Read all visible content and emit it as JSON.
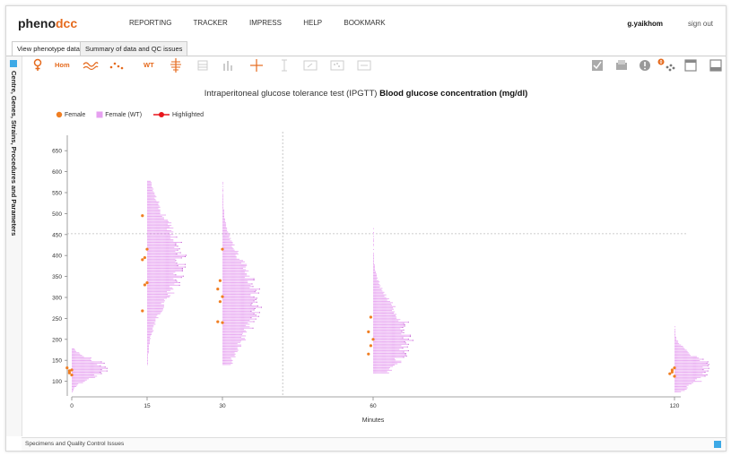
{
  "logo": {
    "pheno": "pheno",
    "dcc": "dcc"
  },
  "nav": [
    "REPORTING",
    "TRACKER",
    "IMPRESS",
    "HELP",
    "BOOKMARK"
  ],
  "user": "g.yaikhom",
  "signout": "sign out",
  "tabs": {
    "active": "View phenotype data",
    "inactive": "Summary of data and QC issues"
  },
  "sidebar_label": "Centre, Genes, Strains, Procedures and Parameters",
  "toolbar": {
    "hom": "Hom",
    "wt": "WT",
    "badge": "0"
  },
  "title": {
    "prefix": "Intraperitoneal glucose tolerance test (IPGTT)",
    "bold": "Blood glucose concentration (mg/dl)"
  },
  "legend": {
    "female": "Female",
    "female_wt": "Female (WT)",
    "highlighted": "Highlighted"
  },
  "bottom": "Specimens and Quality Control Issues",
  "colors": {
    "female": "#f07e22",
    "female_wt": "#e6a0f0",
    "highlighted": "#e8151c",
    "accent": "#e56a1d",
    "dark_wt": "#b43cc8"
  },
  "chart_data": {
    "type": "scatter",
    "xlabel": "Minutes",
    "x_ticks": [
      0,
      15,
      30,
      60,
      120
    ],
    "y_ticks": [
      100,
      150,
      200,
      250,
      300,
      350,
      400,
      450,
      500,
      550,
      600,
      650
    ],
    "xlim": [
      0,
      120
    ],
    "ylim": [
      60,
      680
    ],
    "crosshair": {
      "x": 42,
      "y": 452
    },
    "series": [
      {
        "name": "Female",
        "points": [
          {
            "x": 0,
            "y": 127
          },
          {
            "x": 0,
            "y": 120
          },
          {
            "x": 0,
            "y": 132
          },
          {
            "x": 0,
            "y": 115
          },
          {
            "x": 0,
            "y": 125
          },
          {
            "x": 15,
            "y": 495
          },
          {
            "x": 15,
            "y": 415
          },
          {
            "x": 15,
            "y": 395
          },
          {
            "x": 15,
            "y": 390
          },
          {
            "x": 15,
            "y": 335
          },
          {
            "x": 15,
            "y": 330
          },
          {
            "x": 15,
            "y": 268
          },
          {
            "x": 30,
            "y": 415
          },
          {
            "x": 30,
            "y": 340
          },
          {
            "x": 30,
            "y": 320
          },
          {
            "x": 30,
            "y": 302
          },
          {
            "x": 30,
            "y": 290
          },
          {
            "x": 30,
            "y": 242
          },
          {
            "x": 30,
            "y": 240
          },
          {
            "x": 60,
            "y": 253
          },
          {
            "x": 60,
            "y": 218
          },
          {
            "x": 60,
            "y": 200
          },
          {
            "x": 60,
            "y": 185
          },
          {
            "x": 60,
            "y": 165
          },
          {
            "x": 120,
            "y": 132
          },
          {
            "x": 120,
            "y": 127
          },
          {
            "x": 120,
            "y": 118
          },
          {
            "x": 120,
            "y": 112
          },
          {
            "x": 120,
            "y": 122
          }
        ]
      },
      {
        "name": "Female (WT)",
        "distribution": [
          {
            "x": 0,
            "min": 75,
            "max": 180,
            "mode": 130
          },
          {
            "x": 15,
            "min": 140,
            "max": 580,
            "mode": 390
          },
          {
            "x": 30,
            "min": 140,
            "max": 575,
            "mode": 290
          },
          {
            "x": 60,
            "min": 120,
            "max": 465,
            "mode": 205
          },
          {
            "x": 120,
            "min": 75,
            "max": 230,
            "mode": 128
          }
        ]
      }
    ]
  }
}
